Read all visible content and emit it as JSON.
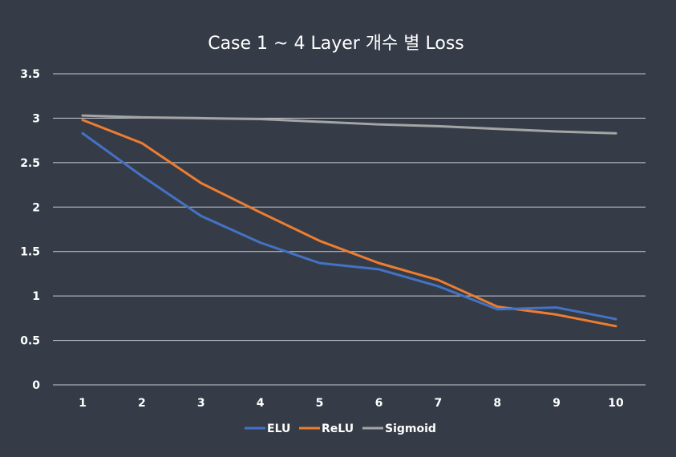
{
  "chart_data": {
    "type": "line",
    "title": "Case 1 ~ 4 Layer 개수 별 Loss",
    "xlabel": "",
    "ylabel": "",
    "x": [
      1,
      2,
      3,
      4,
      5,
      6,
      7,
      8,
      9,
      10
    ],
    "x_tick_labels": [
      "1",
      "2",
      "3",
      "4",
      "5",
      "6",
      "7",
      "8",
      "9",
      "10"
    ],
    "y_tick_labels": [
      "0",
      "0.5",
      "1",
      "1.5",
      "2",
      "2.5",
      "3",
      "3.5"
    ],
    "y_ticks": [
      0,
      0.5,
      1,
      1.5,
      2,
      2.5,
      3,
      3.5
    ],
    "ylim": [
      0,
      3.5
    ],
    "grid": true,
    "legend_position": "bottom",
    "series": [
      {
        "name": "ELU",
        "color": "#4472c4",
        "values": [
          2.83,
          2.35,
          1.9,
          1.6,
          1.37,
          1.3,
          1.11,
          0.85,
          0.87,
          0.74
        ]
      },
      {
        "name": "ReLU",
        "color": "#ed7d31",
        "values": [
          2.98,
          2.72,
          2.27,
          1.94,
          1.62,
          1.37,
          1.18,
          0.88,
          0.79,
          0.66
        ]
      },
      {
        "name": "Sigmoid",
        "color": "#a5a5a5",
        "values": [
          3.03,
          3.01,
          3.0,
          2.99,
          2.96,
          2.93,
          2.91,
          2.88,
          2.85,
          2.83
        ]
      }
    ]
  }
}
